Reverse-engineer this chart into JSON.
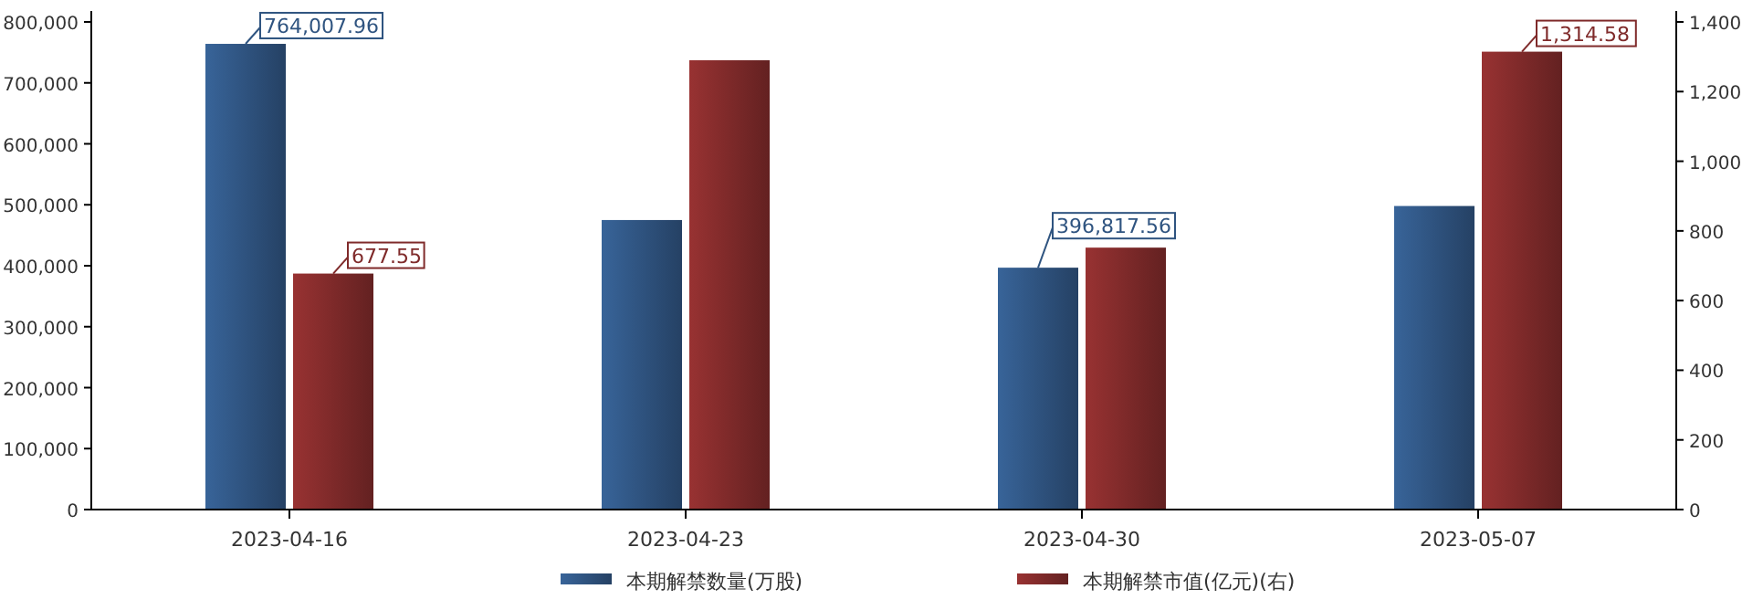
{
  "chart_data": {
    "type": "bar",
    "categories": [
      "2023-04-16",
      "2023-04-23",
      "2023-04-30",
      "2023-05-07"
    ],
    "series": [
      {
        "name": "本期解禁数量(万股)",
        "color": "#2f5480",
        "values": [
          764007.96,
          475000,
          396817.56,
          498000
        ],
        "value_labels": [
          "764,007.96",
          null,
          "396,817.56",
          null
        ]
      },
      {
        "name": "本期解禁市值(亿元)(右)",
        "color": "#7f2a2a",
        "axis": "y2",
        "values": [
          677.55,
          1290,
          752,
          1314.58
        ],
        "value_labels": [
          "677.55",
          null,
          null,
          "1,314.58"
        ]
      }
    ],
    "ylim": [
      0,
      800000
    ],
    "yticks": [
      {
        "value": 0,
        "label": "0"
      },
      {
        "value": 100000,
        "label": "100,000"
      },
      {
        "value": 200000,
        "label": "200,000"
      },
      {
        "value": 300000,
        "label": "300,000"
      },
      {
        "value": 400000,
        "label": "400,000"
      },
      {
        "value": 500000,
        "label": "500,000"
      },
      {
        "value": 600000,
        "label": "600,000"
      },
      {
        "value": 700000,
        "label": "700,000"
      },
      {
        "value": 800000,
        "label": "800,000"
      }
    ],
    "y2lim": [
      0,
      1400
    ],
    "y2ticks": [
      {
        "value": 0,
        "label": "0"
      },
      {
        "value": 200,
        "label": "200"
      },
      {
        "value": 400,
        "label": "400"
      },
      {
        "value": 600,
        "label": "600"
      },
      {
        "value": 800,
        "label": "800"
      },
      {
        "value": 1000,
        "label": "1,000"
      },
      {
        "value": 1200,
        "label": "1,200"
      },
      {
        "value": 1400,
        "label": "1,400"
      }
    ],
    "legend": "bottom",
    "grid": false
  }
}
